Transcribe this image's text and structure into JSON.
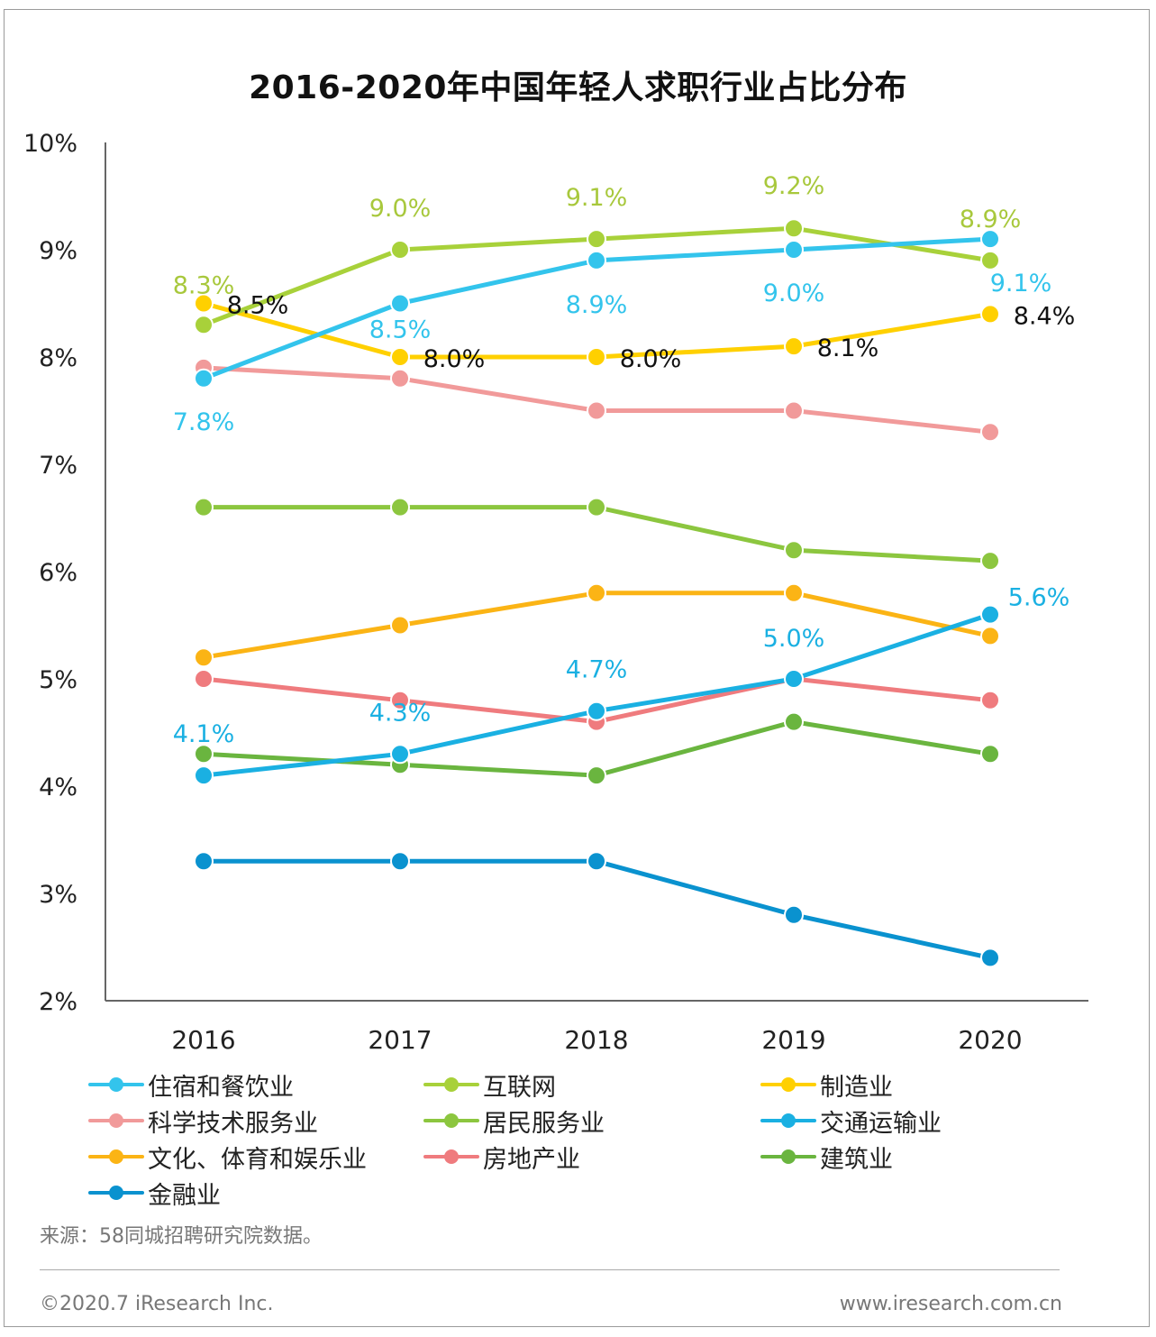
{
  "title": "2016-2020年中国年轻人求职行业占比分布",
  "chart_data": {
    "type": "line",
    "title": "2016-2020年中国年轻人求职行业占比分布",
    "x": [
      "2016",
      "2017",
      "2018",
      "2019",
      "2020"
    ],
    "ylim": [
      2,
      10
    ],
    "y_ticks": [
      "2%",
      "3%",
      "4%",
      "5%",
      "6%",
      "7%",
      "8%",
      "9%",
      "10%"
    ],
    "grid": false,
    "legend_position": "bottom",
    "series": [
      {
        "name": "住宿和餐饮业",
        "color": "#33c4ec",
        "values": [
          7.8,
          8.5,
          8.9,
          9.0,
          9.1
        ],
        "labels": [
          "7.8%",
          "8.5%",
          "8.9%",
          "9.0%",
          "9.1%"
        ],
        "label_color": "#33c4ec"
      },
      {
        "name": "互联网",
        "color": "#a8d13a",
        "values": [
          8.3,
          9.0,
          9.1,
          9.2,
          8.9
        ],
        "labels": [
          "8.3%",
          "9.0%",
          "9.1%",
          "9.2%",
          "8.9%"
        ],
        "label_color": "#a8c83c"
      },
      {
        "name": "制造业",
        "color": "#ffd000",
        "values": [
          8.5,
          8.0,
          8.0,
          8.1,
          8.4
        ],
        "labels": [
          "8.5%",
          "8.0%",
          "8.0%",
          "8.1%",
          "8.4%"
        ],
        "label_color": "#111111"
      },
      {
        "name": "科学技术服务业",
        "color": "#f19a9a",
        "values": [
          7.9,
          7.8,
          7.5,
          7.5,
          7.3
        ],
        "labels": [],
        "label_color": ""
      },
      {
        "name": "居民服务业",
        "color": "#8cc63f",
        "values": [
          6.6,
          6.6,
          6.6,
          6.2,
          6.1
        ],
        "labels": [],
        "label_color": ""
      },
      {
        "name": "交通运输业",
        "color": "#1ab0e2",
        "values": [
          4.1,
          4.3,
          4.7,
          5.0,
          5.6
        ],
        "labels": [
          "4.1%",
          "4.3%",
          "4.7%",
          "5.0%",
          "5.6%"
        ],
        "label_color": "#1ab0e2"
      },
      {
        "name": "文化、体育和娱乐业",
        "color": "#fbb415",
        "values": [
          5.2,
          5.5,
          5.8,
          5.8,
          5.4
        ],
        "labels": [],
        "label_color": ""
      },
      {
        "name": "房地产业",
        "color": "#ef7b7e",
        "values": [
          5.0,
          4.8,
          4.6,
          5.0,
          4.8
        ],
        "labels": [],
        "label_color": ""
      },
      {
        "name": "建筑业",
        "color": "#6ab53f",
        "values": [
          4.3,
          4.2,
          4.1,
          4.6,
          4.3
        ],
        "labels": [],
        "label_color": ""
      },
      {
        "name": "金融业",
        "color": "#0a92cf",
        "values": [
          3.3,
          3.3,
          3.3,
          2.8,
          2.4
        ],
        "labels": [],
        "label_color": ""
      }
    ]
  },
  "legend": [
    {
      "label": "住宿和餐饮业",
      "color": "#33c4ec"
    },
    {
      "label": "互联网",
      "color": "#a8d13a"
    },
    {
      "label": "制造业",
      "color": "#ffd000"
    },
    {
      "label": "科学技术服务业",
      "color": "#f19a9a"
    },
    {
      "label": "居民服务业",
      "color": "#8cc63f"
    },
    {
      "label": "交通运输业",
      "color": "#1ab0e2"
    },
    {
      "label": "文化、体育和娱乐业",
      "color": "#fbb415"
    },
    {
      "label": "房地产业",
      "color": "#ef7b7e"
    },
    {
      "label": "建筑业",
      "color": "#6ab53f"
    },
    {
      "label": "金融业",
      "color": "#0a92cf"
    }
  ],
  "footer": {
    "source": "来源：58同城招聘研究院数据。",
    "copyright": "©2020.7 iResearch Inc.",
    "site": "www.iresearch.com.cn"
  }
}
